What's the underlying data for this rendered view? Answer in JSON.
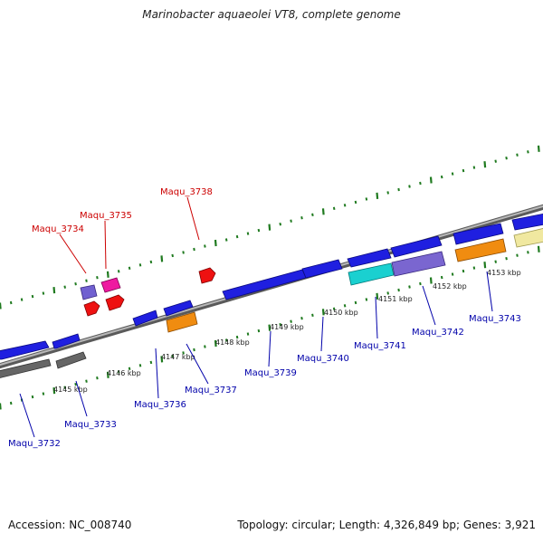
{
  "title": "Marinobacter aquaeolei VT8, complete genome",
  "footer": {
    "accession": "Accession: NC_008740",
    "summary": "Topology: circular; Length: 4,326,849 bp; Genes: 3,921"
  },
  "colors": {
    "backbone": "#8a8a8a",
    "ticks": "#1f7a1f",
    "forward_label": "#cc0000",
    "reverse_label": "#0000aa"
  },
  "scale_labels": [
    "4145 kbp",
    "4146 kbp",
    "4147 kbp",
    "4148 kbp",
    "4149 kbp",
    "4150 kbp",
    "4151 kbp",
    "4152 kbp",
    "4153 kbp"
  ],
  "genes": [
    {
      "name": "Maqu_3732",
      "strand": "reverse",
      "color": "#1f1fe0",
      "start_kbp": 4143.8,
      "end_kbp": 4144.75
    },
    {
      "name": "Maqu_3733",
      "strand": "reverse",
      "color": "#1f1fe0",
      "start_kbp": 4144.85,
      "end_kbp": 4145.2
    },
    {
      "name": "Maqu_3734",
      "strand": "forward",
      "color": "#7060d0",
      "start_kbp": 4145.75,
      "end_kbp": 4145.95
    },
    {
      "name": "Maqu_3735",
      "strand": "forward",
      "color": "#ee1aa0",
      "start_kbp": 4146.05,
      "end_kbp": 4146.3
    },
    {
      "name": "Maqu_3736",
      "strand": "reverse",
      "color": "#1f1fe0",
      "start_kbp": 4146.45,
      "end_kbp": 4146.75
    },
    {
      "name": "Maqu_3737",
      "strand": "reverse",
      "color": "#1f1fe0",
      "start_kbp": 4146.85,
      "end_kbp": 4147.2
    },
    {
      "name": "Maqu_3738",
      "strand": "forward",
      "color": "#ee1111",
      "start_kbp": 4147.55,
      "end_kbp": 4147.75
    },
    {
      "name": "Maqu_3739",
      "strand": "reverse",
      "color": "#1f1fe0",
      "start_kbp": 4147.95,
      "end_kbp": 4149.25
    },
    {
      "name": "Maqu_3740",
      "strand": "reverse",
      "color": "#1f1fe0",
      "start_kbp": 4149.3,
      "end_kbp": 4149.95
    },
    {
      "name": "Maqu_3741",
      "strand": "reverse",
      "color": "#1f1fe0",
      "start_kbp": 4150.1,
      "end_kbp": 4150.85
    },
    {
      "name": "Maqu_3742",
      "strand": "reverse",
      "color": "#1f1fe0",
      "start_kbp": 4150.95,
      "end_kbp": 4152.05
    },
    {
      "name": "Maqu_3743",
      "strand": "reverse",
      "color": "#1f1fe0",
      "start_kbp": 4152.15,
      "end_kbp": 4152.95
    }
  ]
}
